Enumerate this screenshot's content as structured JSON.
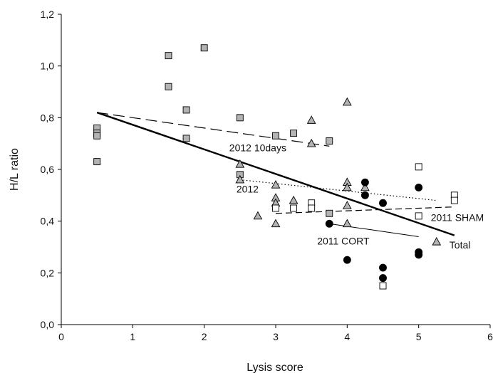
{
  "chart_data": {
    "type": "scatter",
    "xlabel": "Lysis score",
    "ylabel": "H/L ratio",
    "xlim": [
      0,
      6
    ],
    "ylim": [
      0.0,
      1.2
    ],
    "x_ticks": [
      "0",
      "1",
      "2",
      "3",
      "4",
      "5",
      "6"
    ],
    "y_ticks": [
      "0,0",
      "0,2",
      "0,4",
      "0,6",
      "0,8",
      "1,0",
      "1,2"
    ],
    "grid": false,
    "series": [
      {
        "name": "2012 10days",
        "marker": "square",
        "fill": "#b3b3b3",
        "points": [
          [
            0.5,
            0.76
          ],
          [
            0.5,
            0.74
          ],
          [
            0.5,
            0.73
          ],
          [
            0.5,
            0.63
          ],
          [
            1.5,
            1.04
          ],
          [
            1.5,
            0.92
          ],
          [
            1.75,
            0.83
          ],
          [
            1.75,
            0.72
          ],
          [
            2.0,
            1.07
          ],
          [
            2.5,
            0.8
          ],
          [
            2.5,
            0.58
          ],
          [
            3.0,
            0.73
          ],
          [
            3.25,
            0.74
          ],
          [
            3.75,
            0.71
          ],
          [
            3.75,
            0.43
          ]
        ]
      },
      {
        "name": "2012",
        "marker": "triangle",
        "fill": "#b3b3b3",
        "points": [
          [
            2.5,
            0.62
          ],
          [
            2.5,
            0.56
          ],
          [
            2.75,
            0.42
          ],
          [
            3.0,
            0.54
          ],
          [
            3.0,
            0.49
          ],
          [
            3.0,
            0.47
          ],
          [
            3.0,
            0.39
          ],
          [
            3.25,
            0.48
          ],
          [
            3.5,
            0.79
          ],
          [
            3.5,
            0.7
          ],
          [
            4.0,
            0.86
          ],
          [
            4.0,
            0.55
          ],
          [
            4.0,
            0.53
          ],
          [
            4.0,
            0.46
          ],
          [
            4.0,
            0.39
          ],
          [
            4.25,
            0.53
          ],
          [
            5.25,
            0.32
          ]
        ]
      },
      {
        "name": "2011 SHAM",
        "marker": "square",
        "fill": "#ffffff",
        "points": [
          [
            3.0,
            0.45
          ],
          [
            3.25,
            0.45
          ],
          [
            3.5,
            0.47
          ],
          [
            3.5,
            0.45
          ],
          [
            4.5,
            0.15
          ],
          [
            5.0,
            0.61
          ],
          [
            5.0,
            0.42
          ],
          [
            5.5,
            0.5
          ],
          [
            5.5,
            0.48
          ]
        ]
      },
      {
        "name": "2011 CORT",
        "marker": "circle",
        "fill": "#000000",
        "points": [
          [
            3.75,
            0.39
          ],
          [
            4.0,
            0.25
          ],
          [
            4.25,
            0.55
          ],
          [
            4.25,
            0.5
          ],
          [
            4.5,
            0.47
          ],
          [
            4.5,
            0.22
          ],
          [
            4.5,
            0.18
          ],
          [
            5.0,
            0.53
          ],
          [
            5.0,
            0.28
          ],
          [
            5.0,
            0.27
          ]
        ]
      }
    ],
    "fit_lines": [
      {
        "label": "Total",
        "style": "solid",
        "width": 2.4,
        "from": [
          0.5,
          0.82
        ],
        "to": [
          5.5,
          0.345
        ]
      },
      {
        "label": "2012 10days",
        "style": "longdash",
        "width": 1.2,
        "from": [
          0.5,
          0.82
        ],
        "to": [
          3.75,
          0.69
        ]
      },
      {
        "label": "2012",
        "style": "dotted",
        "width": 1.2,
        "from": [
          2.5,
          0.56
        ],
        "to": [
          5.25,
          0.48
        ]
      },
      {
        "label": "2011 SHAM",
        "style": "dash",
        "width": 1.2,
        "from": [
          3.0,
          0.43
        ],
        "to": [
          5.5,
          0.455
        ]
      },
      {
        "label": "2011 CORT",
        "style": "solid",
        "width": 1.0,
        "from": [
          3.75,
          0.39
        ],
        "to": [
          5.0,
          0.34
        ]
      }
    ],
    "annotations": [
      {
        "text": "2012 10days",
        "at": [
          2.35,
          0.67
        ]
      },
      {
        "text": "2012",
        "at": [
          2.45,
          0.51
        ]
      },
      {
        "text": "2011 SHAM",
        "at": [
          5.17,
          0.4
        ]
      },
      {
        "text": "2011 CORT",
        "at": [
          3.58,
          0.31
        ]
      },
      {
        "text": "Total",
        "at": [
          5.43,
          0.295
        ]
      }
    ]
  }
}
